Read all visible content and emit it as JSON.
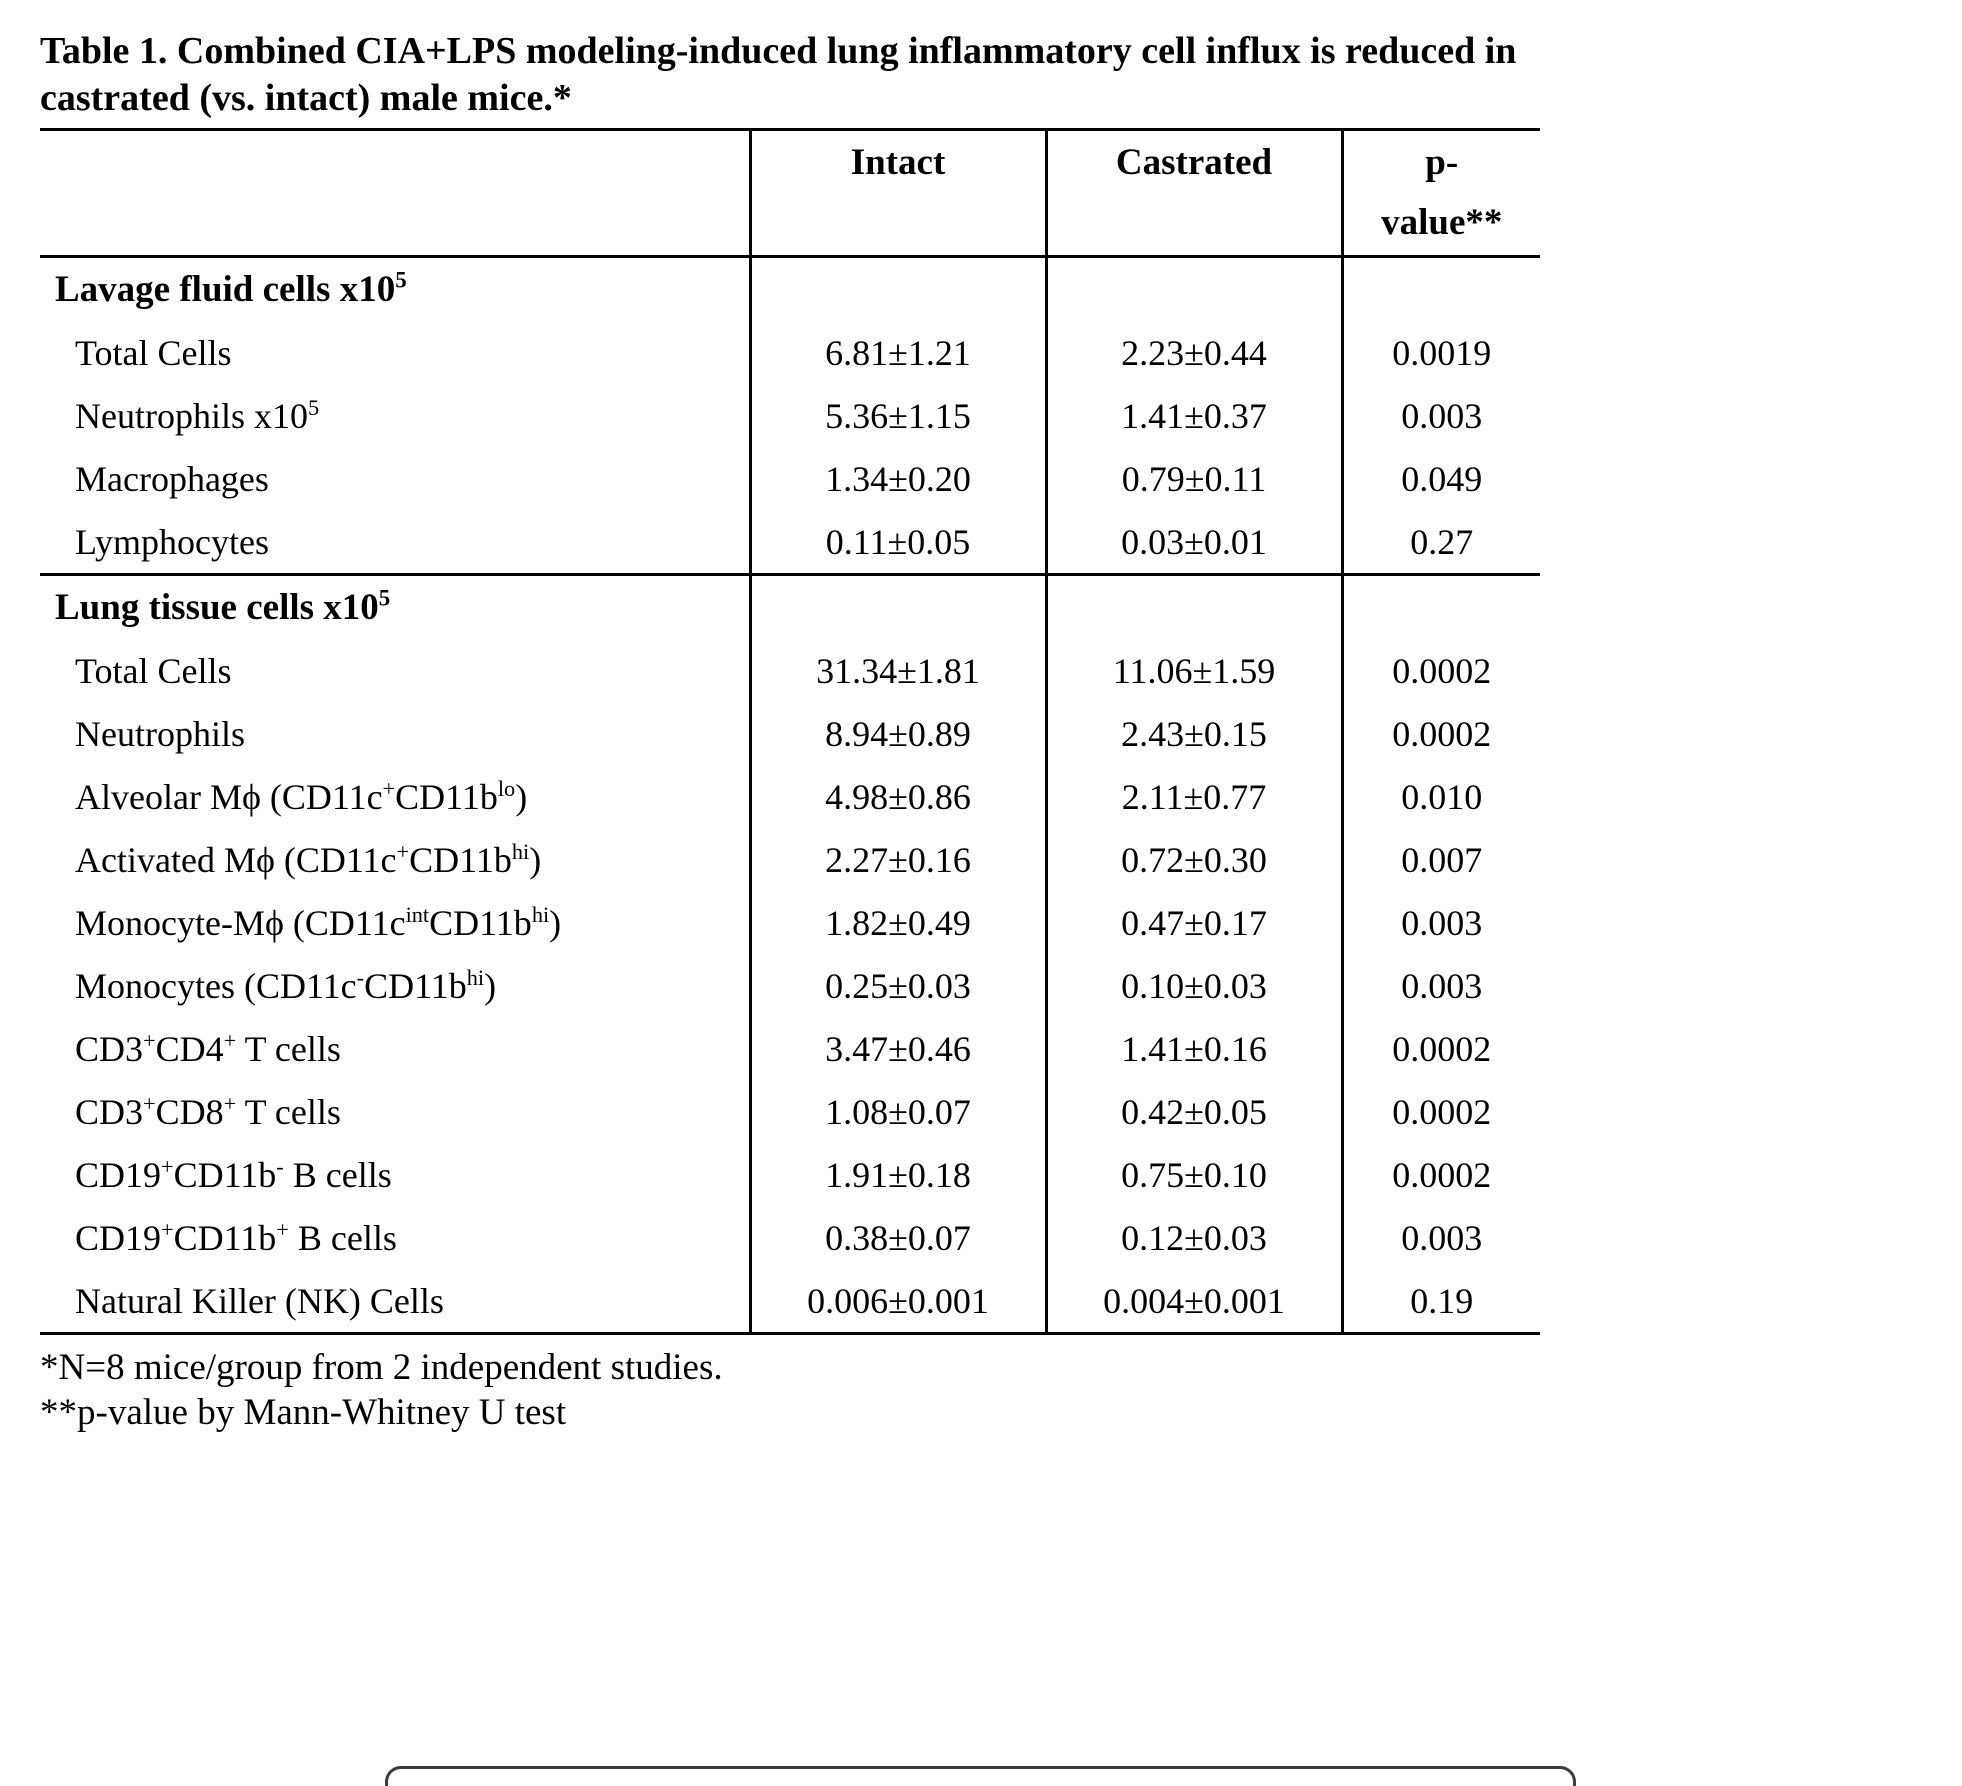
{
  "colors": {
    "text": "#000000",
    "border": "#000000",
    "background": "#ffffff"
  },
  "title": "Table 1. Combined CIA+LPS modeling-induced lung inflammatory cell influx is reduced in\ncastrated (vs. intact) male mice.*",
  "table": {
    "header": {
      "intact": "Intact",
      "castrated": "Castrated",
      "pvalue": "p-\nvalue**"
    },
    "sections": [
      {
        "header": "Lavage fluid cells x10^5^",
        "rows": [
          {
            "label": "Total Cells",
            "intact": "6.81±1.21",
            "castrated": "2.23±0.44",
            "p": "0.0019"
          },
          {
            "label": "Neutrophils x10^5^",
            "intact": "5.36±1.15",
            "castrated": "1.41±0.37",
            "p": "0.003"
          },
          {
            "label": "Macrophages",
            "intact": "1.34±0.20",
            "castrated": "0.79±0.11",
            "p": "0.049"
          },
          {
            "label": "Lymphocytes",
            "intact": "0.11±0.05",
            "castrated": "0.03±0.01",
            "p": "0.27"
          }
        ]
      },
      {
        "header": "Lung tissue cells x10^5^",
        "rows": [
          {
            "label": "Total Cells",
            "intact": "31.34±1.81",
            "castrated": "11.06±1.59",
            "p": "0.0002"
          },
          {
            "label": "Neutrophils",
            "intact": "8.94±0.89",
            "castrated": "2.43±0.15",
            "p": "0.0002"
          },
          {
            "label": "Alveolar Mϕ (CD11c^+^CD11b^lo^)",
            "intact": "4.98±0.86",
            "castrated": "2.11±0.77",
            "p": "0.010"
          },
          {
            "label": "Activated Mϕ (CD11c^+^CD11b^hi^)",
            "intact": "2.27±0.16",
            "castrated": "0.72±0.30",
            "p": "0.007"
          },
          {
            "label": "Monocyte-Mϕ (CD11c^int^CD11b^hi^)",
            "intact": "1.82±0.49",
            "castrated": "0.47±0.17",
            "p": "0.003"
          },
          {
            "label": "Monocytes (CD11c^-^CD11b^hi^)",
            "intact": "0.25±0.03",
            "castrated": "0.10±0.03",
            "p": "0.003"
          },
          {
            "label": "CD3^+^CD4^+^ T cells",
            "intact": "3.47±0.46",
            "castrated": "1.41±0.16",
            "p": "0.0002"
          },
          {
            "label": "CD3^+^CD8^+^ T cells",
            "intact": "1.08±0.07",
            "castrated": "0.42±0.05",
            "p": "0.0002"
          },
          {
            "label": "CD19^+^CD11b^-^ B cells",
            "intact": "1.91±0.18",
            "castrated": "0.75±0.10",
            "p": "0.0002"
          },
          {
            "label": "CD19^+^CD11b^+^ B cells",
            "intact": "0.38±0.07",
            "castrated": "0.12±0.03",
            "p": "0.003"
          },
          {
            "label": "Natural Killer (NK) Cells",
            "intact": "0.006±0.001",
            "castrated": "0.004±0.001",
            "p": "0.19"
          }
        ]
      }
    ]
  },
  "footnotes": [
    "*N=8 mice/group from 2 independent studies.",
    "**p-value by Mann-Whitney U test"
  ]
}
